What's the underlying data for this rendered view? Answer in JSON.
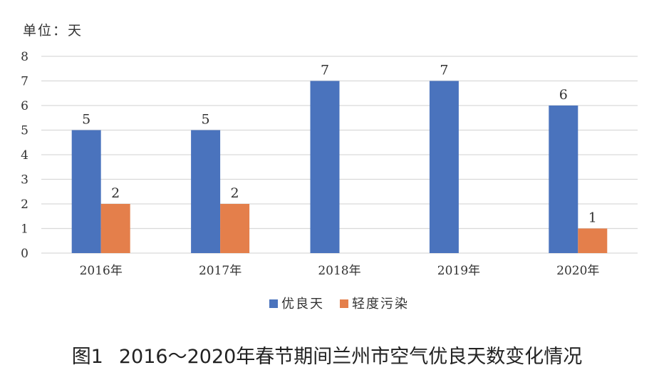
{
  "unit_label": "单位：天",
  "caption": {
    "number": "图1",
    "text": "2016～2020年春节期间兰州市空气优良天数变化情况"
  },
  "chart_data": {
    "type": "bar",
    "title": "",
    "xlabel": "",
    "ylabel": "",
    "ylim": [
      0,
      8
    ],
    "yticks": [
      0,
      1,
      2,
      3,
      4,
      5,
      6,
      7,
      8
    ],
    "grid": true,
    "legend_position": "bottom",
    "categories": [
      "2016年",
      "2017年",
      "2018年",
      "2019年",
      "2020年"
    ],
    "series": [
      {
        "name": "优良天",
        "color": "#4a73bd",
        "values": [
          5,
          5,
          7,
          7,
          6
        ]
      },
      {
        "name": "轻度污染",
        "color": "#e47f4b",
        "values": [
          2,
          2,
          null,
          null,
          1
        ]
      }
    ]
  }
}
